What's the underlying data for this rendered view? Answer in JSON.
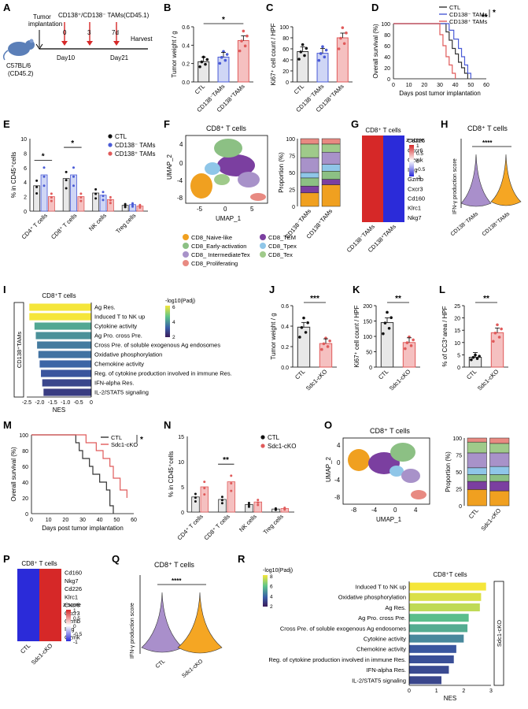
{
  "panel_letters": [
    "A",
    "B",
    "C",
    "D",
    "E",
    "F",
    "G",
    "H",
    "I",
    "J",
    "K",
    "L",
    "M",
    "N",
    "O",
    "P",
    "Q",
    "R"
  ],
  "colors": {
    "ctl": "#333333",
    "cd138neg": "#4a5bd6",
    "cd138pos": "#e05a5a",
    "heat_red": "#d62828",
    "heat_blue": "#2b2bd9",
    "violin_purple": "#a98fcb",
    "violin_orange": "#f5a623"
  },
  "panelA": {
    "mouse_label_1": "C57BL/6",
    "mouse_label_2": "(CD45.2)",
    "implant_label_1": "Tumor",
    "implant_label_2": "implantation",
    "tam_label": "CD138⁺/CD138⁻ TAMs(CD45.1)",
    "ticks": [
      "0",
      "3",
      "7d"
    ],
    "day_start": "Day10",
    "day_end": "Day21",
    "harvest": "Harvest"
  },
  "panelF": {
    "title": "CD8⁺ T cells",
    "legend": [
      "CD8_Naive-like",
      "CD8_TEM",
      "CD8_Early-activation",
      "CD8_Tpex",
      "CD8_ IntermediateTex",
      "CD8_Tex",
      "CD8_Proliferating"
    ],
    "legend_colors": [
      "#f0a020",
      "#7b3fa0",
      "#8cc084",
      "#8fc6e8",
      "#a892c9",
      "#9fca8a",
      "#e88a82"
    ],
    "x_label": "UMAP_1",
    "y_label": "UMAP_2",
    "x_ticks": [
      "-5",
      "0",
      "5"
    ],
    "y_ticks": [
      "4",
      "0",
      "-4",
      "-8"
    ],
    "bar_y_label": "Proportion (%)",
    "bar_y_ticks": [
      "100",
      "75",
      "50",
      "25",
      "0"
    ],
    "bar_labels": [
      "CD138⁻TAMs",
      "CD138⁺TAMs"
    ]
  },
  "panelG": {
    "title": "CD8⁺ T cells",
    "genes": [
      "Cd226",
      "Cxcr6",
      "Gzmk",
      "Ifng",
      "Gzmb",
      "Cxcr3",
      "Cd160",
      "Klrc1",
      "Nkg7"
    ],
    "cols": [
      "CD138⁻TAMs",
      "CD138⁺TAMs"
    ],
    "scale_title": "z-score",
    "scale_ticks": [
      "1",
      "0.5",
      "0",
      "-0.5",
      "-1"
    ]
  },
  "panelH": {
    "title": "CD8⁺ T cells",
    "y_label": "IFN-γ production score",
    "sig": "****",
    "groups": [
      "CD138⁻TAMs",
      "CD138⁺TAMs"
    ]
  },
  "panelI": {
    "title": "CD8⁺T cells",
    "side_label": "CD138⁺TAMs",
    "x_label": "NES",
    "x_ticks": [
      "-2.5",
      "-2.0",
      "-1.5",
      "-1.0",
      "-0.5",
      "0"
    ],
    "scale_title": "-log10(Padj)",
    "scale_ticks": [
      "6",
      "4",
      "2"
    ]
  },
  "panelM": {
    "y_label": "Overall survival (%)",
    "x_label": "Days post tumor implantation",
    "y_ticks": [
      "100",
      "80",
      "60",
      "40",
      "20",
      "0"
    ],
    "x_ticks": [
      "0",
      "10",
      "20",
      "30",
      "40",
      "50",
      "60"
    ],
    "legend": [
      "CTL",
      "Sdc1-cKO"
    ],
    "sig": "*"
  },
  "panelN": {
    "y_label": "% in CD45⁺cells",
    "y_ticks": [
      "15",
      "10",
      "5",
      "0"
    ],
    "categories": [
      "CD4⁺ T cells",
      "CD8⁺ T cells",
      "NK cells",
      "Treg cells"
    ],
    "legend": [
      "CTL",
      "Sdc1-cKO"
    ],
    "sig": "**"
  },
  "panelO": {
    "title": "CD8⁺ T cells",
    "x_label": "UMAP_1",
    "y_label": "UMAP_2",
    "x_ticks": [
      "-8",
      "-4",
      "0",
      "4"
    ],
    "y_ticks": [
      "4",
      "0",
      "-4",
      "-8"
    ],
    "bar_y_label": "Proportion (%)",
    "bar_y_ticks": [
      "100",
      "75",
      "50",
      "25",
      "0"
    ],
    "bar_labels": [
      "CTL",
      "Sdc1-cKO"
    ]
  },
  "panelP": {
    "title": "CD8⁺ T cells",
    "genes": [
      "Cd160",
      "Nkg7",
      "Cd226",
      "Klrc1",
      "Cxcr6",
      "Cxcr3",
      "Gzmb",
      "Ifng",
      "Gzmk"
    ],
    "cols": [
      "CTL",
      "Sdc1-cKO"
    ],
    "scale_title": "z-score",
    "scale_ticks": [
      "1",
      "0.5",
      "0",
      "-0.5",
      "-1"
    ]
  },
  "panelQ": {
    "title": "CD8⁺ T cells",
    "y_label": "IFN-γ production score",
    "sig": "****",
    "groups": [
      "CTL",
      "Sdc1-cKO"
    ]
  },
  "panelR": {
    "title": "CD8⁺T cells",
    "side_label": "Sdc1-cKO",
    "x_label": "NES",
    "x_ticks": [
      "0",
      "1",
      "2",
      "3"
    ],
    "scale_title": "-log10(Padj)",
    "scale_ticks": [
      "8",
      "6",
      "4",
      "2"
    ]
  },
  "chart_data": [
    {
      "id": "B",
      "type": "bar",
      "categories": [
        "CTL",
        "CD138⁻TAMs",
        "CD138⁺TAMs"
      ],
      "values": [
        0.22,
        0.27,
        0.45
      ],
      "ylabel": "Tumor weight / g",
      "ylim": [
        0,
        0.6
      ],
      "yticks": [
        "0.0",
        "0.2",
        "0.4",
        "0.6"
      ],
      "sig": "*"
    },
    {
      "id": "C",
      "type": "bar",
      "categories": [
        "CTL",
        "CD138⁻TAMs",
        "CD138⁺TAMs"
      ],
      "values": [
        55,
        52,
        80
      ],
      "ylabel": "Ki67⁺ cell count / HPF",
      "ylim": [
        0,
        100
      ],
      "yticks": [
        "0",
        "20",
        "40",
        "60",
        "80",
        "100"
      ]
    },
    {
      "id": "D",
      "type": "line",
      "ylabel": "Overall survival (%)",
      "xlabel": "Days post tumor implantation",
      "ylim": [
        0,
        100
      ],
      "xlim": [
        0,
        60
      ],
      "yticks": [
        "0",
        "20",
        "40",
        "60",
        "80",
        "100"
      ],
      "xticks": [
        "0",
        "10",
        "20",
        "30",
        "40",
        "50",
        "60"
      ],
      "series": [
        {
          "name": "CTL",
          "x": [
            0,
            32,
            34,
            36,
            38,
            40,
            42,
            44,
            46,
            48
          ],
          "y": [
            100,
            100,
            85,
            70,
            55,
            45,
            30,
            20,
            10,
            0
          ]
        },
        {
          "name": "CD138⁻ TAMs",
          "x": [
            0,
            33,
            36,
            39,
            42,
            44,
            46,
            48,
            50
          ],
          "y": [
            100,
            100,
            88,
            72,
            55,
            40,
            25,
            10,
            0
          ]
        },
        {
          "name": "CD138⁺ TAMs",
          "x": [
            0,
            28,
            30,
            32,
            34,
            36,
            38,
            40
          ],
          "y": [
            100,
            100,
            80,
            60,
            40,
            25,
            10,
            0
          ]
        }
      ],
      "sig": [
        "**",
        "*"
      ]
    },
    {
      "id": "E",
      "type": "bar",
      "categories": [
        "CD4⁺ T cells",
        "CD8⁺ T cells",
        "NK cells",
        "Treg cells"
      ],
      "series": [
        {
          "name": "CTL",
          "values": [
            3.5,
            4.5,
            2.5,
            0.8
          ]
        },
        {
          "name": "CD138⁻ TAMs",
          "values": [
            5.0,
            5.0,
            2.2,
            0.9
          ]
        },
        {
          "name": "CD138⁺ TAMs",
          "values": [
            2.0,
            2.0,
            1.6,
            0.7
          ]
        }
      ],
      "ylabel": "% in CD45⁺cells",
      "ylim": [
        0,
        10
      ],
      "yticks": [
        "0",
        "2",
        "4",
        "6",
        "8",
        "10"
      ],
      "sig": [
        "*",
        "*"
      ]
    },
    {
      "id": "I",
      "type": "bar",
      "categories": [
        "Ag Res.",
        "Induced T to NK up",
        "Cytokine activity",
        "Ag Pro. cross Pre.",
        "Cross Pre. of soluble exogenous Ag endosomes",
        "Oxidative phosphorylation",
        "Chemokine activity",
        "Reg. of cytokine production involved in immune Res.",
        "IFN-alpha Res.",
        "IL-2/STAT5 signaling"
      ],
      "values": [
        -2.4,
        -2.4,
        -2.2,
        -2.15,
        -2.1,
        -2.05,
        -2.0,
        -1.95,
        -1.9,
        -1.85
      ],
      "padj": [
        7,
        7,
        4,
        3.5,
        3,
        2.8,
        2.5,
        2,
        1.5,
        1.2
      ],
      "xlabel": "NES",
      "xlim": [
        -2.5,
        0
      ]
    },
    {
      "id": "J",
      "type": "bar",
      "categories": [
        "CTL",
        "Sdc1-cKO"
      ],
      "values": [
        0.39,
        0.23
      ],
      "ylabel": "Tumor weight / g",
      "ylim": [
        0,
        0.6
      ],
      "yticks": [
        "0.0",
        "0.2",
        "0.4",
        "0.6"
      ],
      "sig": "***"
    },
    {
      "id": "K",
      "type": "bar",
      "categories": [
        "CTL",
        "Sdc1-cKO"
      ],
      "values": [
        145,
        80
      ],
      "ylabel": "Ki67⁺ cell count / HPF",
      "ylim": [
        0,
        200
      ],
      "yticks": [
        "0",
        "50",
        "100",
        "150",
        "200"
      ],
      "sig": "**"
    },
    {
      "id": "L",
      "type": "bar",
      "categories": [
        "CTL",
        "Sdc1-cKO"
      ],
      "values": [
        4,
        14
      ],
      "ylabel": "% of CC3⁺area / HPF",
      "ylim": [
        0,
        25
      ],
      "yticks": [
        "0",
        "5",
        "10",
        "15",
        "20",
        "25"
      ],
      "sig": "**"
    },
    {
      "id": "R",
      "type": "bar",
      "categories": [
        "Induced T to NK up",
        "Oxidative phosphorylation",
        "Ag Res.",
        "Ag Pro. cross Pre.",
        "Cross Pre. of soluble exogenous Ag endosomes",
        "Cytokine activity",
        "Chemokine activity",
        "Reg. of cytokine production involved in immune Res.",
        "IFN-alpha Res.",
        "IL-2/STAT5 signaling"
      ],
      "values": [
        3.1,
        2.9,
        2.85,
        2.4,
        2.35,
        2.2,
        1.9,
        1.8,
        1.6,
        1.3
      ],
      "padj": [
        8.5,
        8,
        7.5,
        5.5,
        5,
        4,
        2.5,
        2.2,
        2,
        1.8
      ],
      "xlabel": "NES",
      "xlim": [
        0,
        3.3
      ]
    }
  ]
}
